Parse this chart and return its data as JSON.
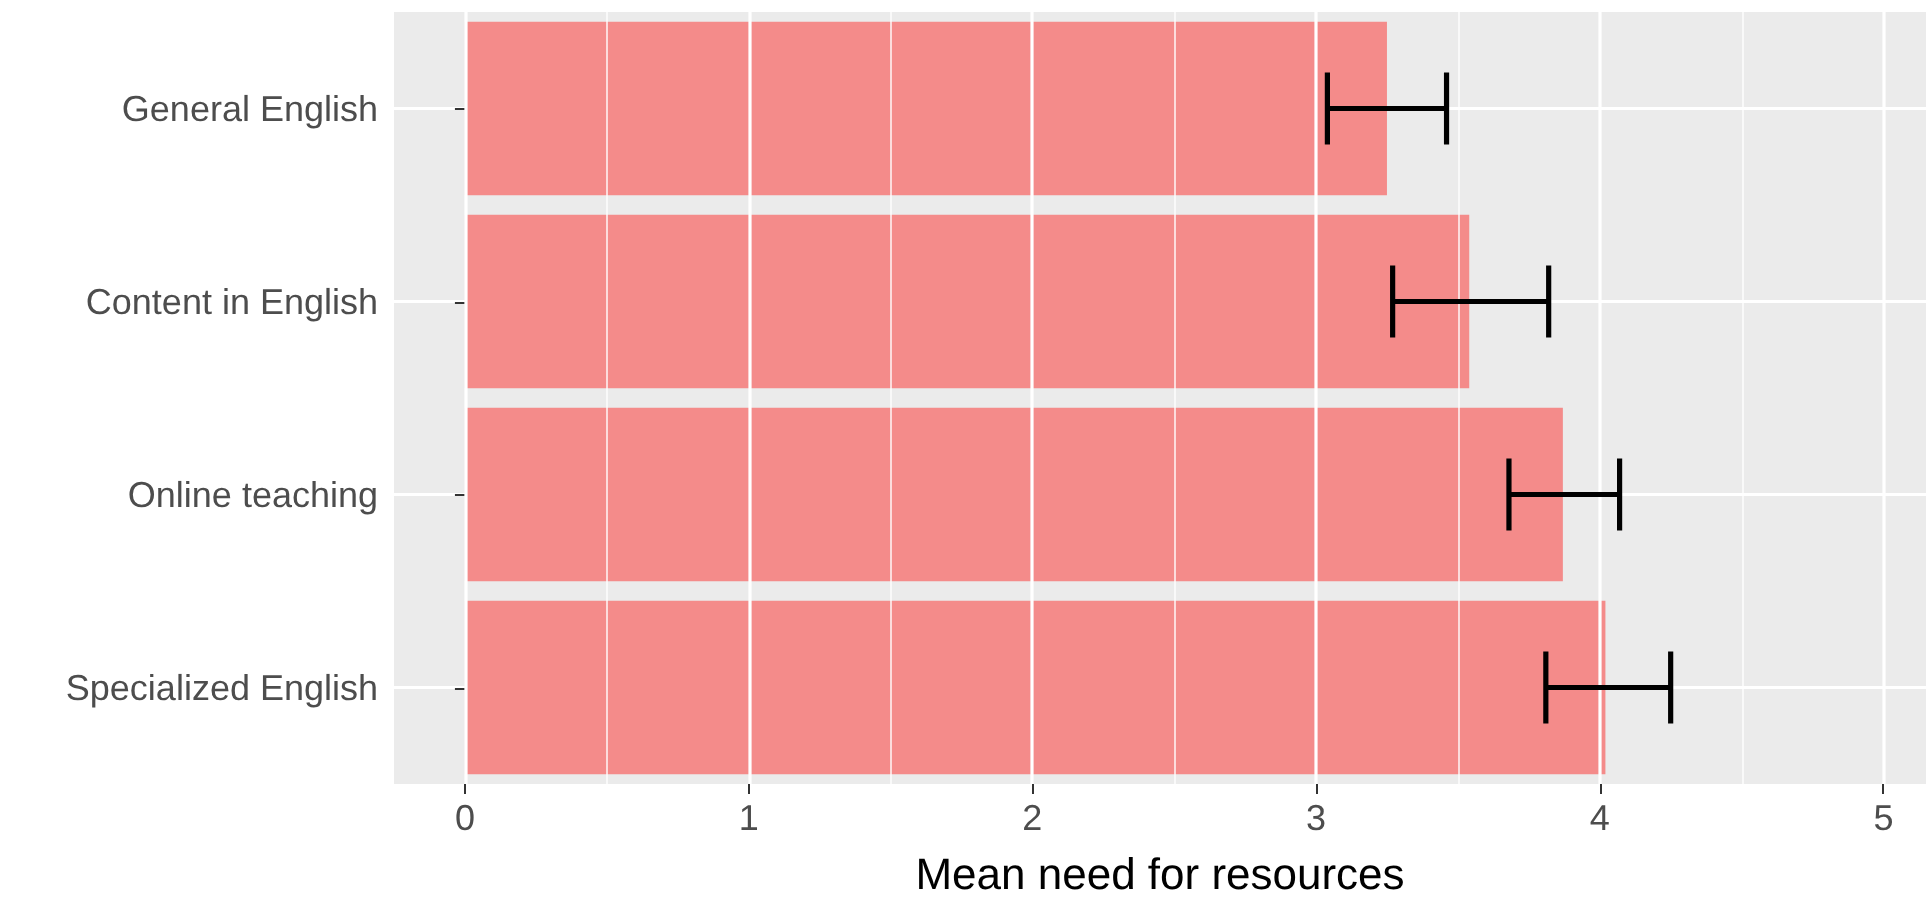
{
  "chart_data": {
    "type": "bar",
    "orientation": "horizontal",
    "xlabel": "Mean need for resources",
    "categories": [
      "General English",
      "Content in English",
      "Online teaching",
      "Specialized English"
    ],
    "values": [
      3.25,
      3.54,
      3.87,
      4.02
    ],
    "errors": [
      [
        3.04,
        3.46
      ],
      [
        3.27,
        3.82
      ],
      [
        3.68,
        4.07
      ],
      [
        3.81,
        4.25
      ]
    ],
    "color": "#f48b8a",
    "xlim": [
      -0.25,
      5.15
    ],
    "xticks": [
      0,
      1,
      2,
      3,
      4,
      5
    ],
    "grid": true
  }
}
